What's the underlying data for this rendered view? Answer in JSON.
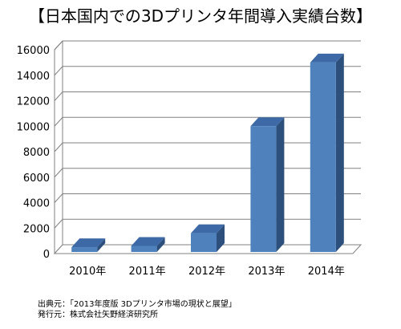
{
  "chart_data": {
    "type": "bar",
    "title": "【日本国内での3Dプリンタ年間導入実績台数】",
    "xlabel": "",
    "ylabel": "",
    "categories": [
      "2010年",
      "2011年",
      "2012年",
      "2013年",
      "2014年"
    ],
    "values": [
      500,
      600,
      1600,
      10000,
      15000
    ],
    "ylim": [
      0,
      16000
    ],
    "yticks": [
      "0",
      "2000",
      "4000",
      "6000",
      "8000",
      "10000",
      "12000",
      "14000",
      "16000"
    ],
    "grid": true,
    "legend": "none",
    "style": "3d-column",
    "colors": {
      "bar_front": "#4f81bd",
      "bar_side": "#2c4f7c",
      "bar_top": "#3d6aa6",
      "grid": "#808080",
      "axis_text": "#000000"
    }
  },
  "source": {
    "publication": "出典元：「2013年度版 3Dプリンタ市場の現状と展望」",
    "publisher": "発行元：株式会社矢野経済研究所"
  }
}
